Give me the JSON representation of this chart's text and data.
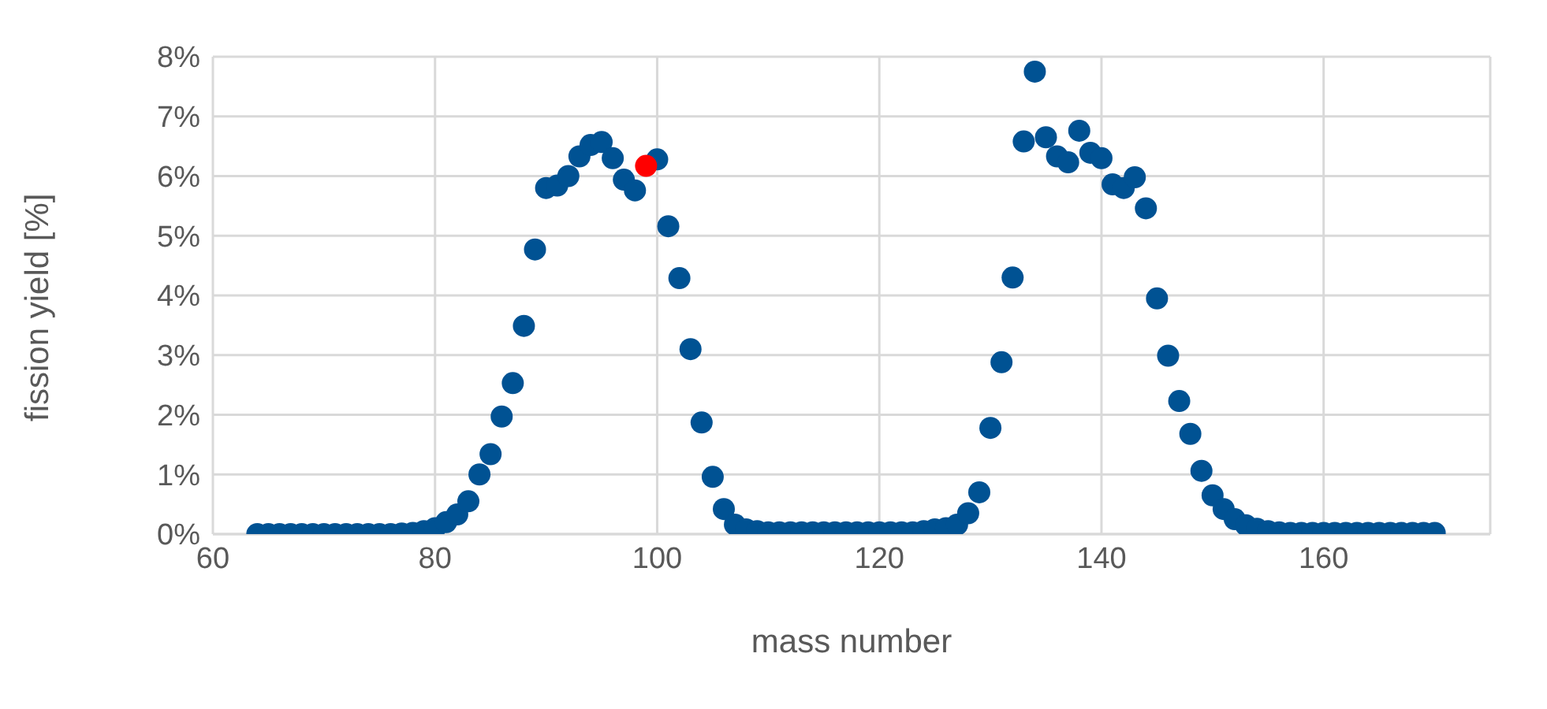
{
  "chart_data": {
    "type": "scatter",
    "xlabel": "mass number",
    "ylabel": "fission yield [%]",
    "x": [
      64,
      65,
      66,
      67,
      68,
      69,
      70,
      71,
      72,
      73,
      74,
      75,
      76,
      77,
      78,
      79,
      80,
      81,
      82,
      83,
      84,
      85,
      86,
      87,
      88,
      89,
      90,
      91,
      92,
      93,
      94,
      95,
      96,
      97,
      98,
      99,
      100,
      101,
      102,
      103,
      104,
      105,
      106,
      107,
      108,
      109,
      110,
      111,
      112,
      113,
      114,
      115,
      116,
      117,
      118,
      119,
      120,
      121,
      122,
      123,
      124,
      125,
      126,
      127,
      128,
      129,
      130,
      131,
      132,
      133,
      134,
      135,
      136,
      137,
      138,
      139,
      140,
      141,
      142,
      143,
      144,
      145,
      146,
      147,
      148,
      149,
      150,
      151,
      152,
      153,
      154,
      155,
      156,
      157,
      158,
      159,
      160,
      161,
      162,
      163,
      164,
      165,
      166,
      167,
      168,
      169,
      170
    ],
    "series": [
      {
        "color": "#005293",
        "values": [
          0,
          0,
          0,
          0,
          0,
          0,
          0,
          0,
          0,
          0,
          0,
          0,
          0,
          0.01,
          0.02,
          0.05,
          0.1,
          0.2,
          0.33,
          0.55,
          1.0,
          1.34,
          1.97,
          2.53,
          3.49,
          4.77,
          5.8,
          5.84,
          6.0,
          6.33,
          6.52,
          6.57,
          6.3,
          5.94,
          5.76,
          null,
          6.28,
          5.16,
          4.29,
          3.1,
          1.87,
          0.96,
          0.42,
          0.16,
          0.08,
          0.05,
          0.03,
          0.03,
          0.03,
          0.03,
          0.03,
          0.03,
          0.03,
          0.03,
          0.03,
          0.03,
          0.03,
          0.03,
          0.03,
          0.03,
          0.05,
          0.08,
          0.1,
          0.16,
          0.35,
          0.7,
          1.78,
          2.88,
          4.3,
          6.58,
          7.75,
          6.65,
          6.33,
          6.23,
          6.76,
          6.39,
          6.3,
          5.86,
          5.8,
          5.98,
          5.46,
          3.95,
          2.99,
          2.23,
          1.68,
          1.06,
          0.65,
          0.42,
          0.25,
          0.15,
          0.09,
          0.05,
          0.03,
          0.02,
          0.02,
          0.02,
          0.02,
          0.02,
          0.02,
          0.02,
          0.02,
          0.02,
          0.02,
          0.02,
          0.02,
          0.02,
          0.02
        ]
      },
      {
        "color": "#ff0000",
        "x": [
          99
        ],
        "values": [
          6.17
        ]
      }
    ],
    "xlim": [
      60,
      175
    ],
    "xticks": [
      60,
      80,
      100,
      120,
      140,
      160
    ],
    "ylim": [
      0,
      8
    ],
    "yticks": [
      {
        "value": 0,
        "label": "0%"
      },
      {
        "value": 1,
        "label": "1%"
      },
      {
        "value": 2,
        "label": "2%"
      },
      {
        "value": 3,
        "label": "3%"
      },
      {
        "value": 4,
        "label": "4%"
      },
      {
        "value": 5,
        "label": "5%"
      },
      {
        "value": 6,
        "label": "6%"
      },
      {
        "value": 7,
        "label": "7%"
      },
      {
        "value": 8,
        "label": "8%"
      }
    ],
    "grid": true,
    "marker": "circle",
    "legend": false
  }
}
